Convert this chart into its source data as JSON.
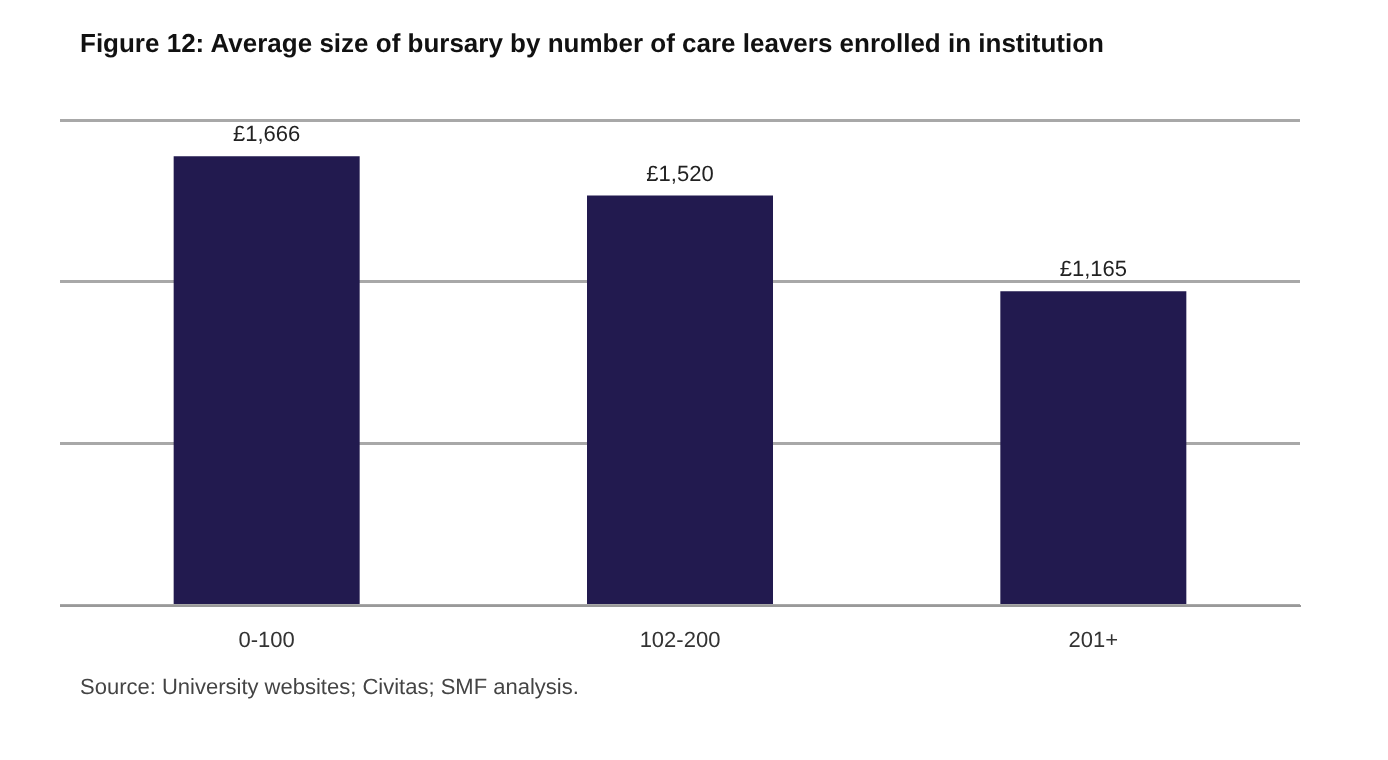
{
  "chart_data": {
    "type": "bar",
    "title": "Figure 12: Average size of bursary by number of care leavers enrolled in institution",
    "categories": [
      "0-100",
      "102-200",
      "201+"
    ],
    "values": [
      1666,
      1520,
      1165
    ],
    "value_labels": [
      "£1,666",
      "£1,520",
      "£1,165"
    ],
    "color": "#221a4f",
    "ylim": [
      0,
      1800
    ],
    "yticks": [
      {
        "value": 0,
        "label": null
      },
      {
        "value": 600,
        "label": null
      },
      {
        "value": 1200,
        "label": null
      },
      {
        "value": 1800,
        "label": null
      }
    ],
    "tick_labels": "x",
    "grid": "y",
    "annotations": [
      "Source: University websites; Civitas; SMF analysis."
    ]
  }
}
